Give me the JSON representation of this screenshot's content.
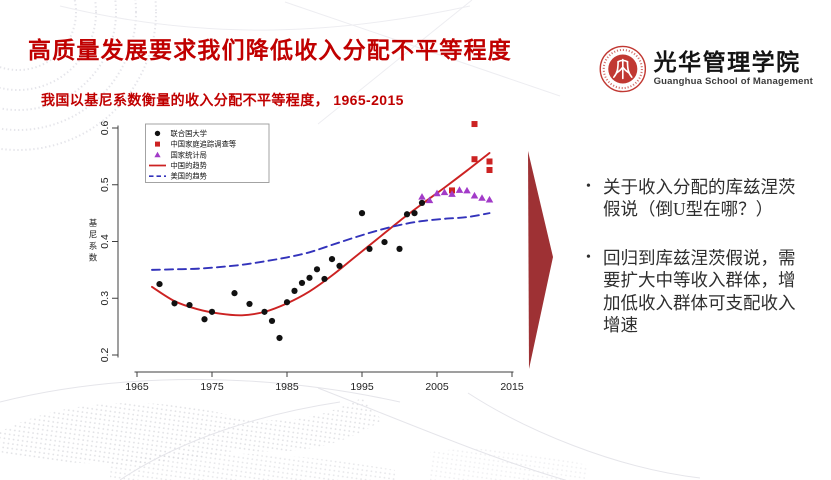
{
  "slide": {
    "title": "高质量发展要求我们降低收入分配不平等程度",
    "subtitle": "我国以基尼系数衡量的收入分配不平等程度， 1965-2015"
  },
  "logo": {
    "school_zh": "光华管理学院",
    "school_en": "Guanghua School of Management",
    "seal_color": "#C13832"
  },
  "insights": {
    "bullet_marker": "•",
    "bullets": [
      "关于收入分配的库兹涅茨假说（倒U型在哪？）",
      "回归到库兹涅茨假说，需要扩大中等收入群体，增加低收入群体可支配收入增速"
    ]
  },
  "colors": {
    "title_red": "#C00000",
    "arrow_red": "#9E3134",
    "china_trend_red": "#CC2222",
    "us_trend_blue": "#3333BB",
    "nbs_purple": "#A23BC8",
    "un_black": "#111111"
  },
  "chart_data": {
    "type": "scatter",
    "title": "",
    "xlabel": "",
    "ylabel": "基尼系数",
    "xlim": [
      1965,
      2015
    ],
    "ylim": [
      0.2,
      0.6
    ],
    "x_ticks": [
      1965,
      1975,
      1985,
      1995,
      2005,
      2015
    ],
    "y_ticks": [
      0.2,
      0.3,
      0.4,
      0.5,
      0.6
    ],
    "grid": false,
    "legend_position": "top-left",
    "series": [
      {
        "name": "联合国大学",
        "type": "scatter",
        "marker": "circle",
        "color": "#111111",
        "points": [
          [
            1968,
            0.325
          ],
          [
            1970,
            0.291
          ],
          [
            1972,
            0.288
          ],
          [
            1974,
            0.263
          ],
          [
            1975,
            0.276
          ],
          [
            1978,
            0.309
          ],
          [
            1980,
            0.29
          ],
          [
            1982,
            0.276
          ],
          [
            1983,
            0.26
          ],
          [
            1984,
            0.23
          ],
          [
            1985,
            0.293
          ],
          [
            1986,
            0.313
          ],
          [
            1987,
            0.327
          ],
          [
            1988,
            0.336
          ],
          [
            1989,
            0.351
          ],
          [
            1990,
            0.334
          ],
          [
            1991,
            0.369
          ],
          [
            1992,
            0.357
          ],
          [
            1995,
            0.45
          ],
          [
            1996,
            0.387
          ],
          [
            1998,
            0.399
          ],
          [
            2000,
            0.387
          ],
          [
            2001,
            0.448
          ],
          [
            2002,
            0.45
          ],
          [
            2003,
            0.468
          ]
        ]
      },
      {
        "name": "中国家庭追踪调查等",
        "type": "scatter",
        "marker": "square",
        "color": "#CC2222",
        "points": [
          [
            2007,
            0.49
          ],
          [
            2010,
            0.607
          ],
          [
            2010,
            0.545
          ],
          [
            2012,
            0.541
          ],
          [
            2012,
            0.526
          ]
        ]
      },
      {
        "name": "国家统计局",
        "type": "scatter",
        "marker": "triangle",
        "color": "#A23BC8",
        "points": [
          [
            2003,
            0.479
          ],
          [
            2004,
            0.473
          ],
          [
            2005,
            0.485
          ],
          [
            2006,
            0.487
          ],
          [
            2007,
            0.484
          ],
          [
            2008,
            0.491
          ],
          [
            2009,
            0.49
          ],
          [
            2010,
            0.481
          ],
          [
            2011,
            0.477
          ],
          [
            2012,
            0.474
          ]
        ]
      },
      {
        "name": "中国的趋势",
        "type": "line",
        "style": "solid",
        "color": "#CC2222",
        "points": [
          [
            1967,
            0.32
          ],
          [
            1970,
            0.295
          ],
          [
            1973,
            0.281
          ],
          [
            1976,
            0.273
          ],
          [
            1979,
            0.27
          ],
          [
            1982,
            0.276
          ],
          [
            1985,
            0.291
          ],
          [
            1988,
            0.312
          ],
          [
            1991,
            0.34
          ],
          [
            1994,
            0.372
          ],
          [
            1997,
            0.404
          ],
          [
            2000,
            0.436
          ],
          [
            2003,
            0.466
          ],
          [
            2006,
            0.495
          ],
          [
            2009,
            0.525
          ],
          [
            2012,
            0.556
          ]
        ]
      },
      {
        "name": "美国的趋势",
        "type": "line",
        "style": "dashed",
        "color": "#3333BB",
        "points": [
          [
            1967,
            0.35
          ],
          [
            1970,
            0.351
          ],
          [
            1973,
            0.352
          ],
          [
            1976,
            0.355
          ],
          [
            1979,
            0.359
          ],
          [
            1982,
            0.365
          ],
          [
            1985,
            0.372
          ],
          [
            1988,
            0.381
          ],
          [
            1991,
            0.394
          ],
          [
            1994,
            0.407
          ],
          [
            1997,
            0.419
          ],
          [
            2000,
            0.429
          ],
          [
            2003,
            0.436
          ],
          [
            2006,
            0.44
          ],
          [
            2009,
            0.443
          ],
          [
            2012,
            0.45
          ]
        ]
      }
    ]
  }
}
